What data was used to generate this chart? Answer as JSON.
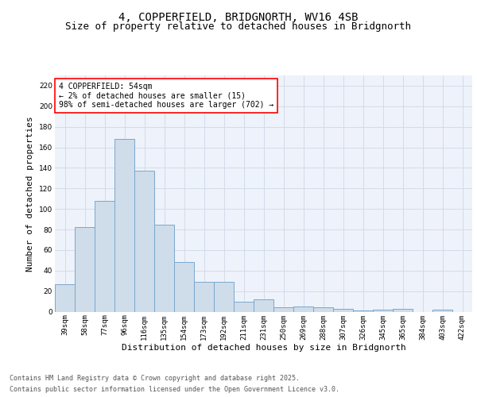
{
  "title_line1": "4, COPPERFIELD, BRIDGNORTH, WV16 4SB",
  "title_line2": "Size of property relative to detached houses in Bridgnorth",
  "xlabel": "Distribution of detached houses by size in Bridgnorth",
  "ylabel": "Number of detached properties",
  "categories": [
    "39sqm",
    "58sqm",
    "77sqm",
    "96sqm",
    "116sqm",
    "135sqm",
    "154sqm",
    "173sqm",
    "192sqm",
    "211sqm",
    "231sqm",
    "250sqm",
    "269sqm",
    "288sqm",
    "307sqm",
    "326sqm",
    "345sqm",
    "365sqm",
    "384sqm",
    "403sqm",
    "422sqm"
  ],
  "values": [
    27,
    82,
    108,
    168,
    137,
    85,
    48,
    29,
    29,
    10,
    12,
    4,
    5,
    4,
    3,
    1,
    2,
    3,
    0,
    2,
    0
  ],
  "bar_color": "#cfdcea",
  "bar_edge_color": "#7aa8cc",
  "annotation_text": "4 COPPERFIELD: 54sqm\n← 2% of detached houses are smaller (15)\n98% of semi-detached houses are larger (702) →",
  "ylim": [
    0,
    230
  ],
  "yticks": [
    0,
    20,
    40,
    60,
    80,
    100,
    120,
    140,
    160,
    180,
    200,
    220
  ],
  "grid_color": "#d0d8e8",
  "bg_color": "#eef2fa",
  "footer_line1": "Contains HM Land Registry data © Crown copyright and database right 2025.",
  "footer_line2": "Contains public sector information licensed under the Open Government Licence v3.0.",
  "title_fontsize": 10,
  "subtitle_fontsize": 9,
  "xlabel_fontsize": 8,
  "ylabel_fontsize": 8,
  "tick_fontsize": 6.5,
  "annotation_fontsize": 7,
  "footer_fontsize": 6
}
